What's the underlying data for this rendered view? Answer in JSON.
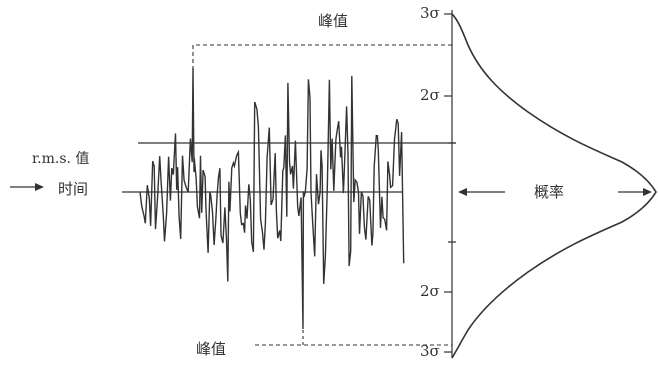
{
  "labels": {
    "peak_top": "峰值",
    "peak_bottom": "峰值",
    "rms": "r.m.s. 值",
    "time": "时间",
    "probability": "概率",
    "sigma3_top": "3σ",
    "sigma2_top": "2σ",
    "sigma2_bottom": "2σ",
    "sigma3_bottom": "3σ"
  },
  "colors": {
    "ink": "#333333",
    "background": "#ffffff"
  }
}
